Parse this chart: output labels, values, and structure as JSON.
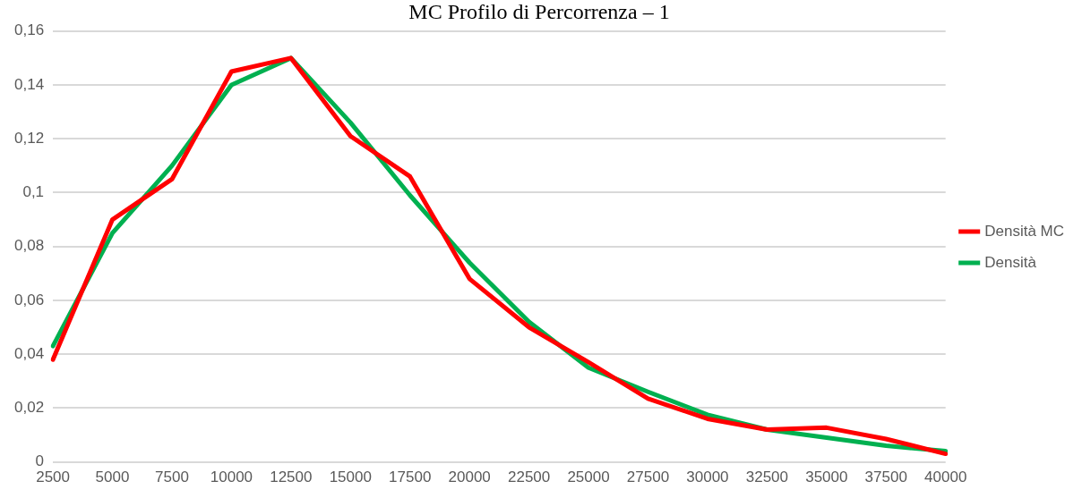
{
  "chart_data": {
    "type": "line",
    "title": "MC Profilo di Percorrenza – 1",
    "categories": [
      "2500",
      "5000",
      "7500",
      "10000",
      "12500",
      "15000",
      "17500",
      "20000",
      "22500",
      "25000",
      "27500",
      "30000",
      "32500",
      "35000",
      "37500",
      "40000"
    ],
    "series": [
      {
        "name": "Densità MC",
        "color": "#ff0000",
        "values": [
          0.038,
          0.09,
          0.105,
          0.145,
          0.15,
          0.121,
          0.106,
          0.068,
          0.05,
          0.037,
          0.0235,
          0.016,
          0.012,
          0.0127,
          0.0085,
          0.003
        ]
      },
      {
        "name": "Densità",
        "color": "#00b050",
        "values": [
          0.043,
          0.085,
          0.11,
          0.14,
          0.15,
          0.126,
          0.099,
          0.074,
          0.052,
          0.035,
          0.026,
          0.0175,
          0.012,
          0.009,
          0.006,
          0.004
        ]
      }
    ],
    "ylim": [
      0,
      0.16
    ],
    "yticks": [
      0,
      {
        "value": 0.02,
        "label": "0,02"
      },
      {
        "value": 0.04,
        "label": "0,04"
      },
      {
        "value": 0.06,
        "label": "0,06"
      },
      {
        "value": 0.08,
        "label": "0,08"
      },
      {
        "value": 0.1,
        "label": "0,1"
      },
      {
        "value": 0.12,
        "label": "0,12"
      },
      {
        "value": 0.14,
        "label": "0,14"
      },
      {
        "value": 0.16,
        "label": "0,16"
      }
    ],
    "grid": "y",
    "legend": "right",
    "marker": "none",
    "line_style": "solid"
  }
}
